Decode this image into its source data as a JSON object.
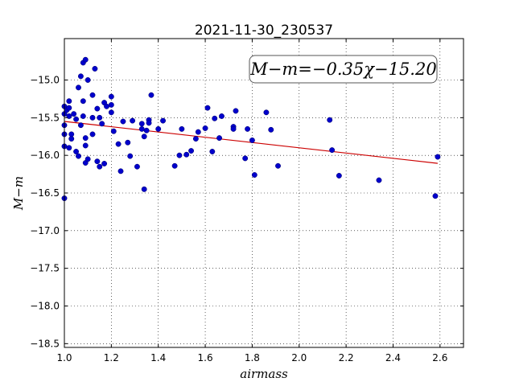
{
  "chart_data": {
    "type": "scatter",
    "title": "2021-11-30_230537",
    "xlabel": "airmass",
    "ylabel": "M−m",
    "annotation": "M−m=−0.35χ−15.20",
    "xlim": [
      1.0,
      2.7
    ],
    "ylim": [
      -18.55,
      -14.45
    ],
    "xticks": [
      1.0,
      1.2,
      1.4,
      1.6,
      1.8,
      2.0,
      2.2,
      2.4,
      2.6
    ],
    "xtick_labels": [
      "1.0",
      "1.2",
      "1.4",
      "1.6",
      "1.8",
      "2.0",
      "2.2",
      "2.4",
      "2.6"
    ],
    "yticks": [
      -15.0,
      -15.5,
      -16.0,
      -16.5,
      -17.0,
      -17.5,
      -18.0,
      -18.5
    ],
    "ytick_labels": [
      "−15.0",
      "−15.5",
      "−16.0",
      "−16.5",
      "−17.0",
      "−17.5",
      "−18.0",
      "−18.5"
    ],
    "grid": true,
    "point_color": "#0000cc",
    "fit_color": "#cc0000",
    "points": [
      [
        1.0,
        -15.35
      ],
      [
        1.0,
        -15.45
      ],
      [
        1.0,
        -15.6
      ],
      [
        1.0,
        -15.72
      ],
      [
        1.0,
        -15.88
      ],
      [
        1.0,
        -16.57
      ],
      [
        1.01,
        -15.4
      ],
      [
        1.02,
        -15.28
      ],
      [
        1.02,
        -15.37
      ],
      [
        1.02,
        -15.48
      ],
      [
        1.03,
        -15.72
      ],
      [
        1.03,
        -15.78
      ],
      [
        1.02,
        -15.9
      ],
      [
        1.04,
        -15.45
      ],
      [
        1.05,
        -15.52
      ],
      [
        1.05,
        -15.95
      ],
      [
        1.06,
        -16.01
      ],
      [
        1.06,
        -15.1
      ],
      [
        1.07,
        -14.95
      ],
      [
        1.08,
        -14.77
      ],
      [
        1.09,
        -14.73
      ],
      [
        1.08,
        -15.28
      ],
      [
        1.08,
        -15.48
      ],
      [
        1.07,
        -15.6
      ],
      [
        1.09,
        -15.77
      ],
      [
        1.09,
        -15.87
      ],
      [
        1.09,
        -16.1
      ],
      [
        1.1,
        -16.05
      ],
      [
        1.1,
        -15.0
      ],
      [
        1.12,
        -15.2
      ],
      [
        1.12,
        -15.5
      ],
      [
        1.12,
        -15.72
      ],
      [
        1.13,
        -14.85
      ],
      [
        1.14,
        -15.38
      ],
      [
        1.14,
        -16.08
      ],
      [
        1.15,
        -15.5
      ],
      [
        1.15,
        -16.15
      ],
      [
        1.16,
        -15.58
      ],
      [
        1.17,
        -16.11
      ],
      [
        1.17,
        -15.3
      ],
      [
        1.18,
        -15.35
      ],
      [
        1.2,
        -15.22
      ],
      [
        1.2,
        -15.33
      ],
      [
        1.2,
        -15.43
      ],
      [
        1.21,
        -15.68
      ],
      [
        1.23,
        -15.85
      ],
      [
        1.24,
        -16.21
      ],
      [
        1.25,
        -15.55
      ],
      [
        1.27,
        -15.83
      ],
      [
        1.28,
        -16.01
      ],
      [
        1.29,
        -15.54
      ],
      [
        1.31,
        -16.15
      ],
      [
        1.33,
        -15.58
      ],
      [
        1.33,
        -15.65
      ],
      [
        1.34,
        -15.75
      ],
      [
        1.34,
        -16.45
      ],
      [
        1.35,
        -15.67
      ],
      [
        1.36,
        -15.53
      ],
      [
        1.36,
        -15.57
      ],
      [
        1.37,
        -15.2
      ],
      [
        1.4,
        -15.65
      ],
      [
        1.42,
        -15.54
      ],
      [
        1.47,
        -16.14
      ],
      [
        1.49,
        -16.0
      ],
      [
        1.5,
        -15.65
      ],
      [
        1.52,
        -15.99
      ],
      [
        1.54,
        -15.94
      ],
      [
        1.56,
        -15.78
      ],
      [
        1.57,
        -15.69
      ],
      [
        1.6,
        -15.64
      ],
      [
        1.61,
        -15.37
      ],
      [
        1.63,
        -15.95
      ],
      [
        1.64,
        -15.51
      ],
      [
        1.66,
        -15.77
      ],
      [
        1.67,
        -15.48
      ],
      [
        1.72,
        -15.62
      ],
      [
        1.72,
        -15.65
      ],
      [
        1.73,
        -15.41
      ],
      [
        1.77,
        -16.04
      ],
      [
        1.78,
        -15.65
      ],
      [
        1.8,
        -15.8
      ],
      [
        1.81,
        -16.26
      ],
      [
        1.86,
        -15.43
      ],
      [
        1.88,
        -15.66
      ],
      [
        1.91,
        -16.14
      ],
      [
        2.13,
        -15.53
      ],
      [
        2.14,
        -15.93
      ],
      [
        2.17,
        -16.27
      ],
      [
        2.34,
        -16.33
      ],
      [
        2.58,
        -16.54
      ],
      [
        2.59,
        -16.02
      ]
    ],
    "fit_line": {
      "x": [
        1.0,
        2.59
      ],
      "y": [
        -15.55,
        -16.106
      ]
    }
  }
}
